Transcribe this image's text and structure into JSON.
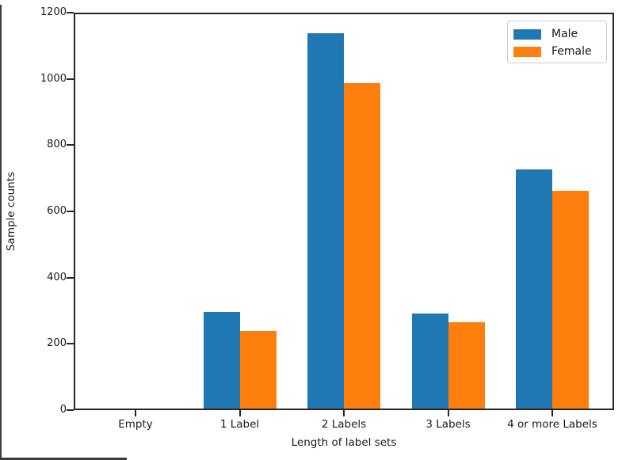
{
  "chart_data": {
    "type": "bar",
    "title": "",
    "xlabel": "Length of label sets",
    "ylabel": "Sample counts",
    "categories": [
      "Empty",
      "1 Label",
      "2 Labels",
      "3 Labels",
      "4 or more Labels"
    ],
    "series": [
      {
        "name": "Male",
        "color": "#1f77b4",
        "values": [
          0,
          293,
          1143,
          290,
          728
        ]
      },
      {
        "name": "Female",
        "color": "#ff7f0e",
        "values": [
          0,
          237,
          990,
          262,
          662
        ]
      }
    ],
    "ylim": [
      0,
      1200
    ],
    "yticks": [
      0,
      200,
      400,
      600,
      800,
      1000,
      1200
    ],
    "grid": false,
    "legend_position": "upper right",
    "bar_group_layout": "side-by-side"
  },
  "frame": {
    "edge_color": "#3a3a3a",
    "spine_color": "#262626",
    "background": "#ffffff"
  }
}
